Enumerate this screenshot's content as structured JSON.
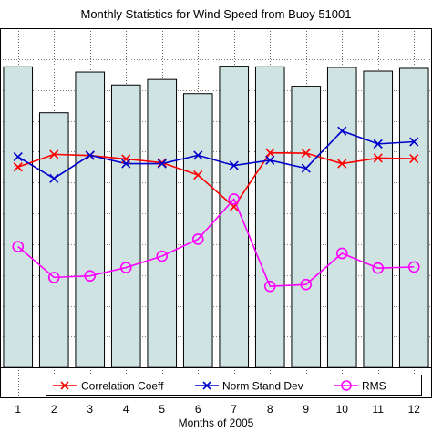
{
  "chart_data": {
    "type": "bar+line",
    "title": "Monthly Statistics for Wind Speed from Buoy 51001",
    "xlabel": "Months of 2005",
    "ylabel": "",
    "categories": [
      "1",
      "2",
      "3",
      "4",
      "5",
      "6",
      "7",
      "8",
      "9",
      "10",
      "11",
      "12"
    ],
    "bars": {
      "values": [
        0.975,
        0.826,
        0.958,
        0.916,
        0.934,
        0.888,
        0.977,
        0.975,
        0.912,
        0.973,
        0.961,
        0.97
      ],
      "fill": "#cfe3e3"
    },
    "series": [
      {
        "name": "Correlation Coeff",
        "color": "#ff0000",
        "marker": "x",
        "values": [
          0.65,
          0.691,
          0.687,
          0.676,
          0.664,
          0.624,
          0.521,
          0.696,
          0.695,
          0.661,
          0.679,
          0.677
        ]
      },
      {
        "name": "Norm Stand Dev",
        "color": "#0000cc",
        "marker": "x",
        "values": [
          0.683,
          0.613,
          0.688,
          0.661,
          0.661,
          0.688,
          0.655,
          0.672,
          0.646,
          0.767,
          0.725,
          0.732
        ]
      },
      {
        "name": "RMS",
        "color": "#ff00ff",
        "marker": "o",
        "values": [
          0.392,
          0.292,
          0.297,
          0.324,
          0.361,
          0.416,
          0.546,
          0.263,
          0.269,
          0.37,
          0.322,
          0.326
        ]
      }
    ],
    "xlim": [
      0.5,
      12.5
    ],
    "ylim": [
      -0.1,
      1.1
    ],
    "grid": true,
    "legend_position": "bottom"
  }
}
